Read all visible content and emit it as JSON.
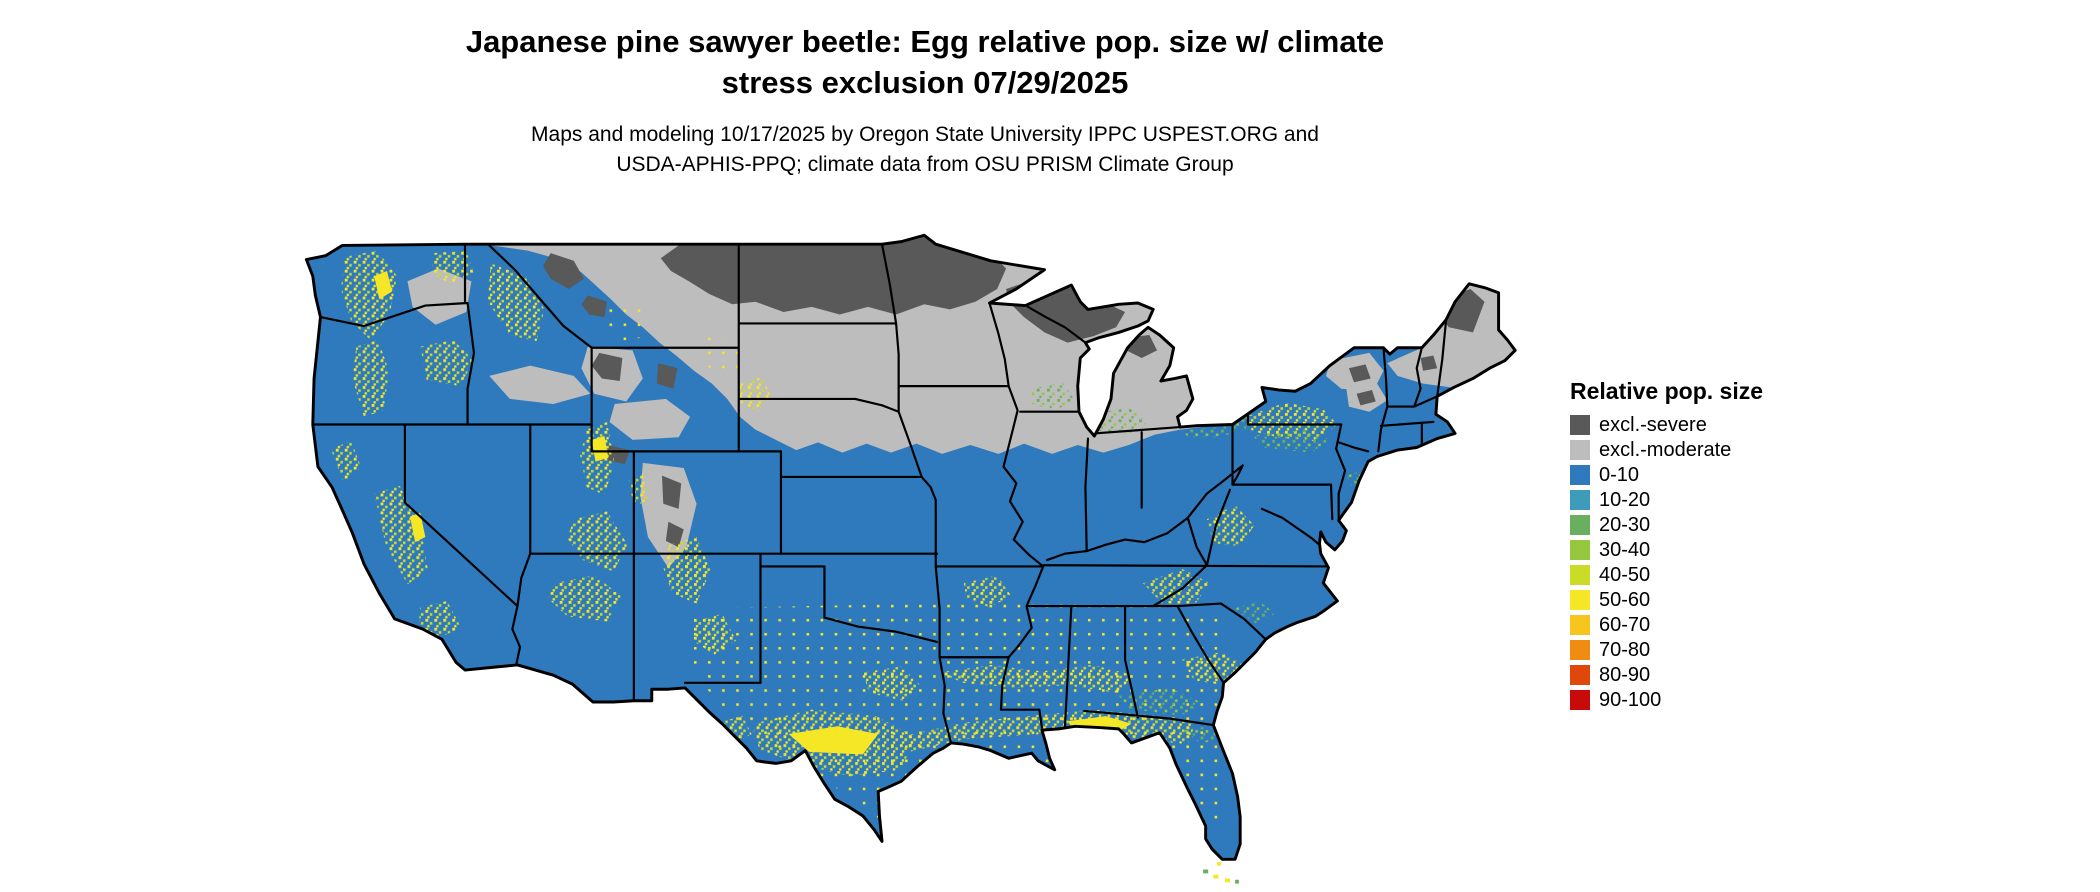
{
  "header": {
    "title_line1": "Japanese pine sawyer beetle: Egg relative pop. size w/ climate",
    "title_line2": "stress exclusion 07/29/2025",
    "subtitle_line1": "Maps and modeling 10/17/2025 by Oregon State University IPPC USPEST.ORG and",
    "subtitle_line2": "USDA-APHIS-PPQ; climate data from OSU PRISM Climate Group"
  },
  "map": {
    "area": "Contiguous United States"
  },
  "legend": {
    "title": "Relative pop. size",
    "entries": [
      {
        "label": "excl.-severe",
        "color": "#595959"
      },
      {
        "label": "excl.-moderate",
        "color": "#bdbdbd"
      },
      {
        "label": "0-10",
        "color": "#2f7abc"
      },
      {
        "label": "10-20",
        "color": "#3f9bba"
      },
      {
        "label": "20-30",
        "color": "#6aaf5e"
      },
      {
        "label": "30-40",
        "color": "#95c83e"
      },
      {
        "label": "40-50",
        "color": "#c8dc28"
      },
      {
        "label": "50-60",
        "color": "#f5e626"
      },
      {
        "label": "60-70",
        "color": "#f7c51e"
      },
      {
        "label": "70-80",
        "color": "#ef8c12"
      },
      {
        "label": "80-90",
        "color": "#e0470b"
      },
      {
        "label": "90-100",
        "color": "#c80a0a"
      }
    ]
  }
}
